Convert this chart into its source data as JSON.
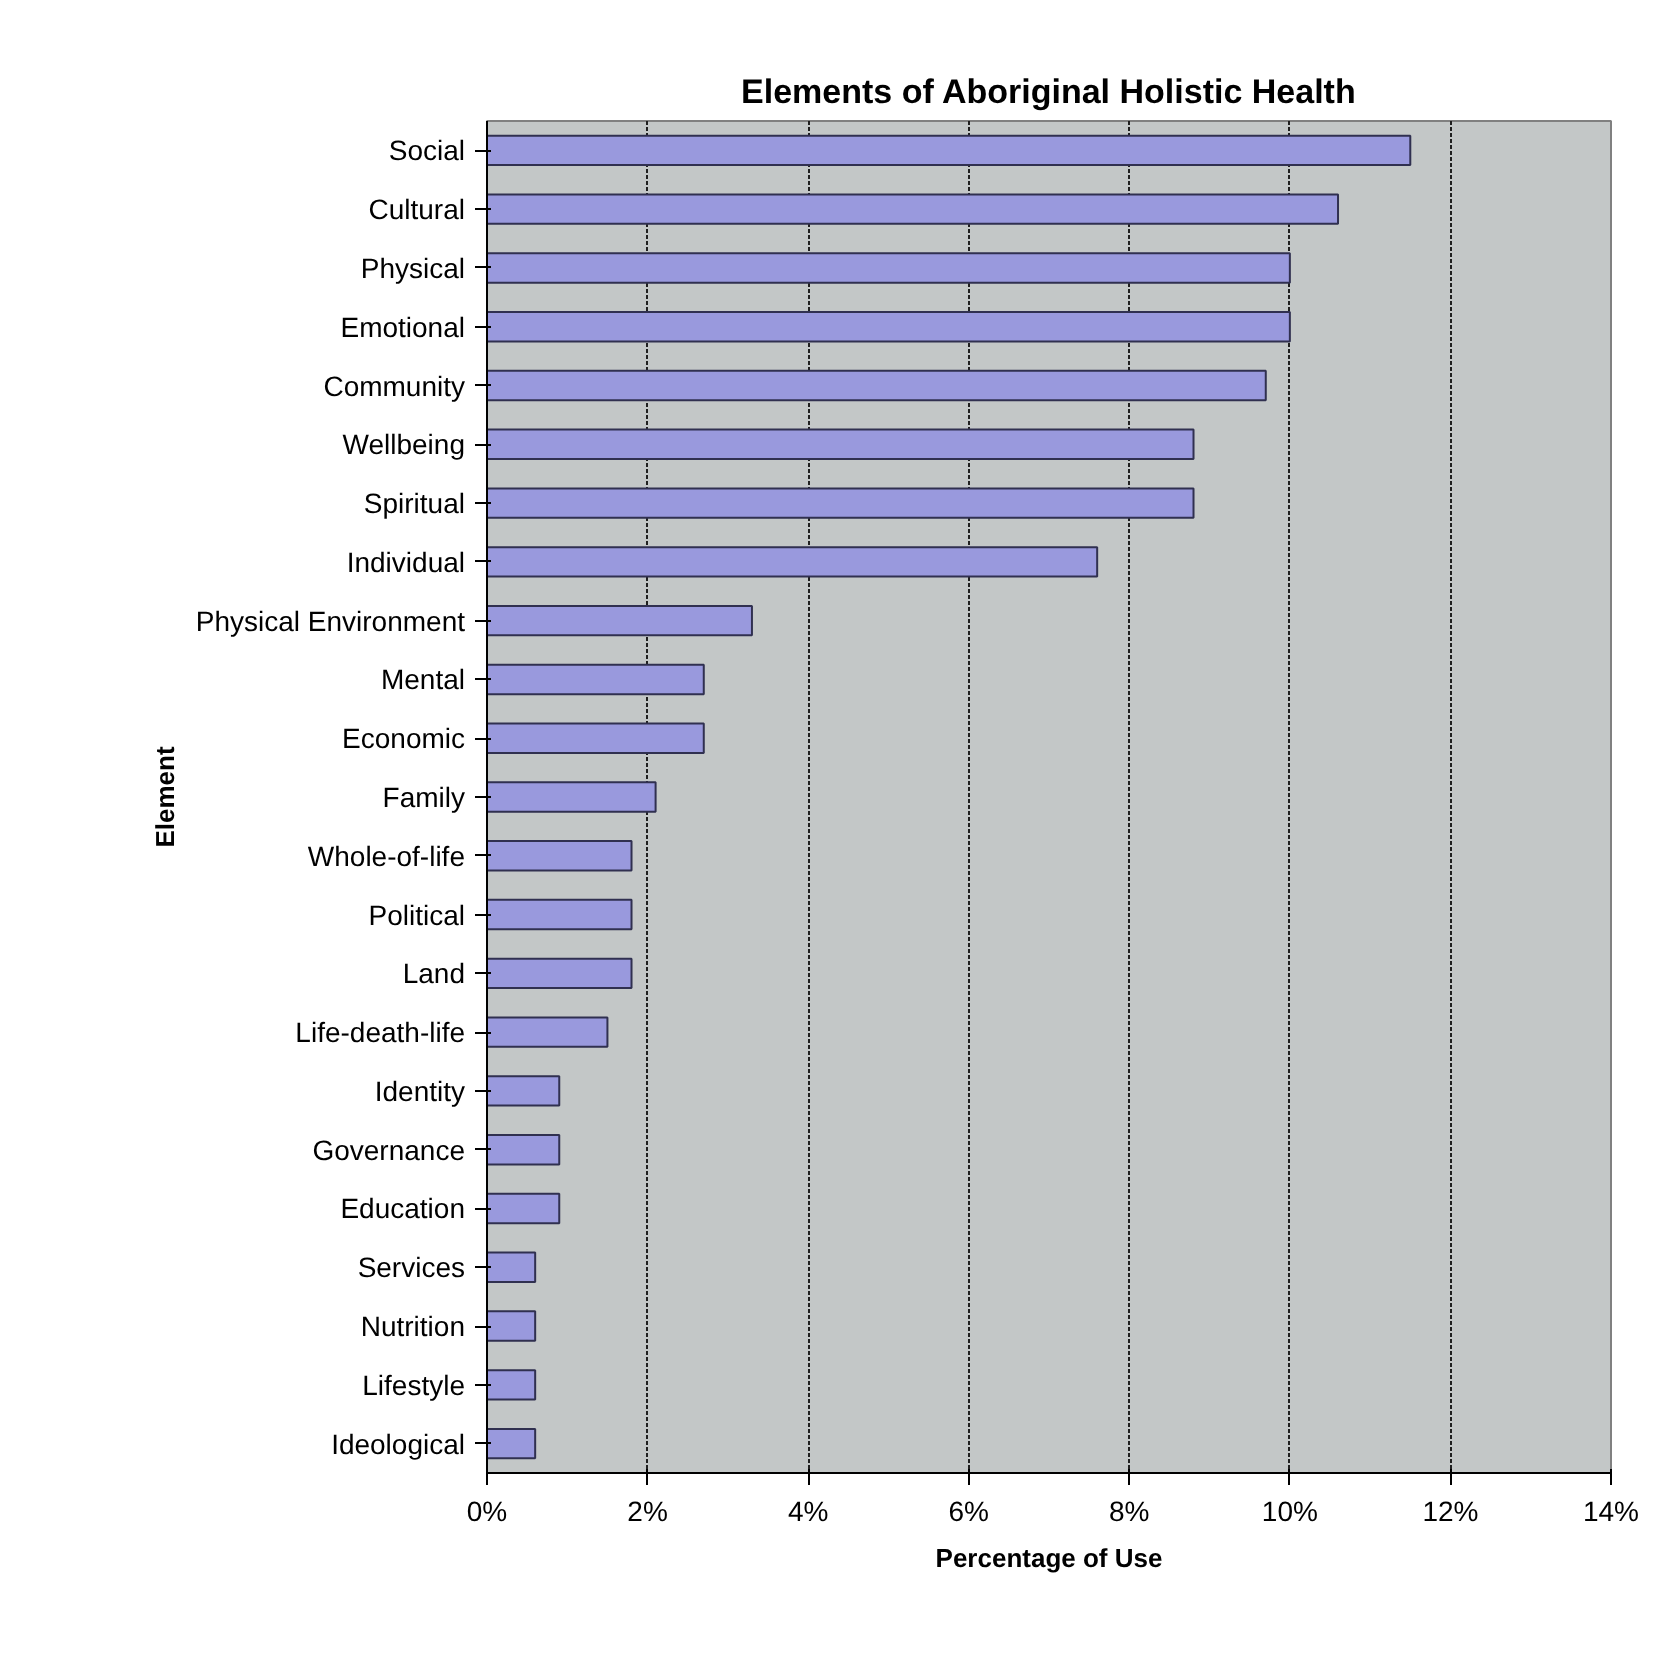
{
  "chart_data": {
    "type": "bar",
    "orientation": "horizontal",
    "title": "Elements of Aboriginal Holistic Health",
    "xlabel": "Percentage of Use",
    "ylabel": "Element",
    "categories": [
      "Social",
      "Cultural",
      "Physical",
      "Emotional",
      "Community",
      "Wellbeing",
      "Spiritual",
      "Individual",
      "Physical Environment",
      "Mental",
      "Economic",
      "Family",
      "Whole-of-life",
      "Political",
      "Land",
      "Life-death-life",
      "Identity",
      "Governance",
      "Education",
      "Services",
      "Nutrition",
      "Lifestyle",
      "Ideological"
    ],
    "values": [
      11.5,
      10.6,
      10.0,
      10.0,
      9.7,
      8.8,
      8.8,
      7.6,
      3.3,
      2.7,
      2.7,
      2.1,
      1.8,
      1.8,
      1.8,
      1.5,
      0.9,
      0.9,
      0.9,
      0.6,
      0.6,
      0.6,
      0.6
    ],
    "color": "#9999dd",
    "xlim": [
      0,
      14
    ],
    "xticks": [
      {
        "value": 0,
        "label": "0%"
      },
      {
        "value": 2,
        "label": "2%"
      },
      {
        "value": 4,
        "label": "4%"
      },
      {
        "value": 6,
        "label": "6%"
      },
      {
        "value": 8,
        "label": "8%"
      },
      {
        "value": 10,
        "label": "10%"
      },
      {
        "value": 12,
        "label": "12%"
      },
      {
        "value": 14,
        "label": "14%"
      }
    ],
    "grid": "x"
  }
}
